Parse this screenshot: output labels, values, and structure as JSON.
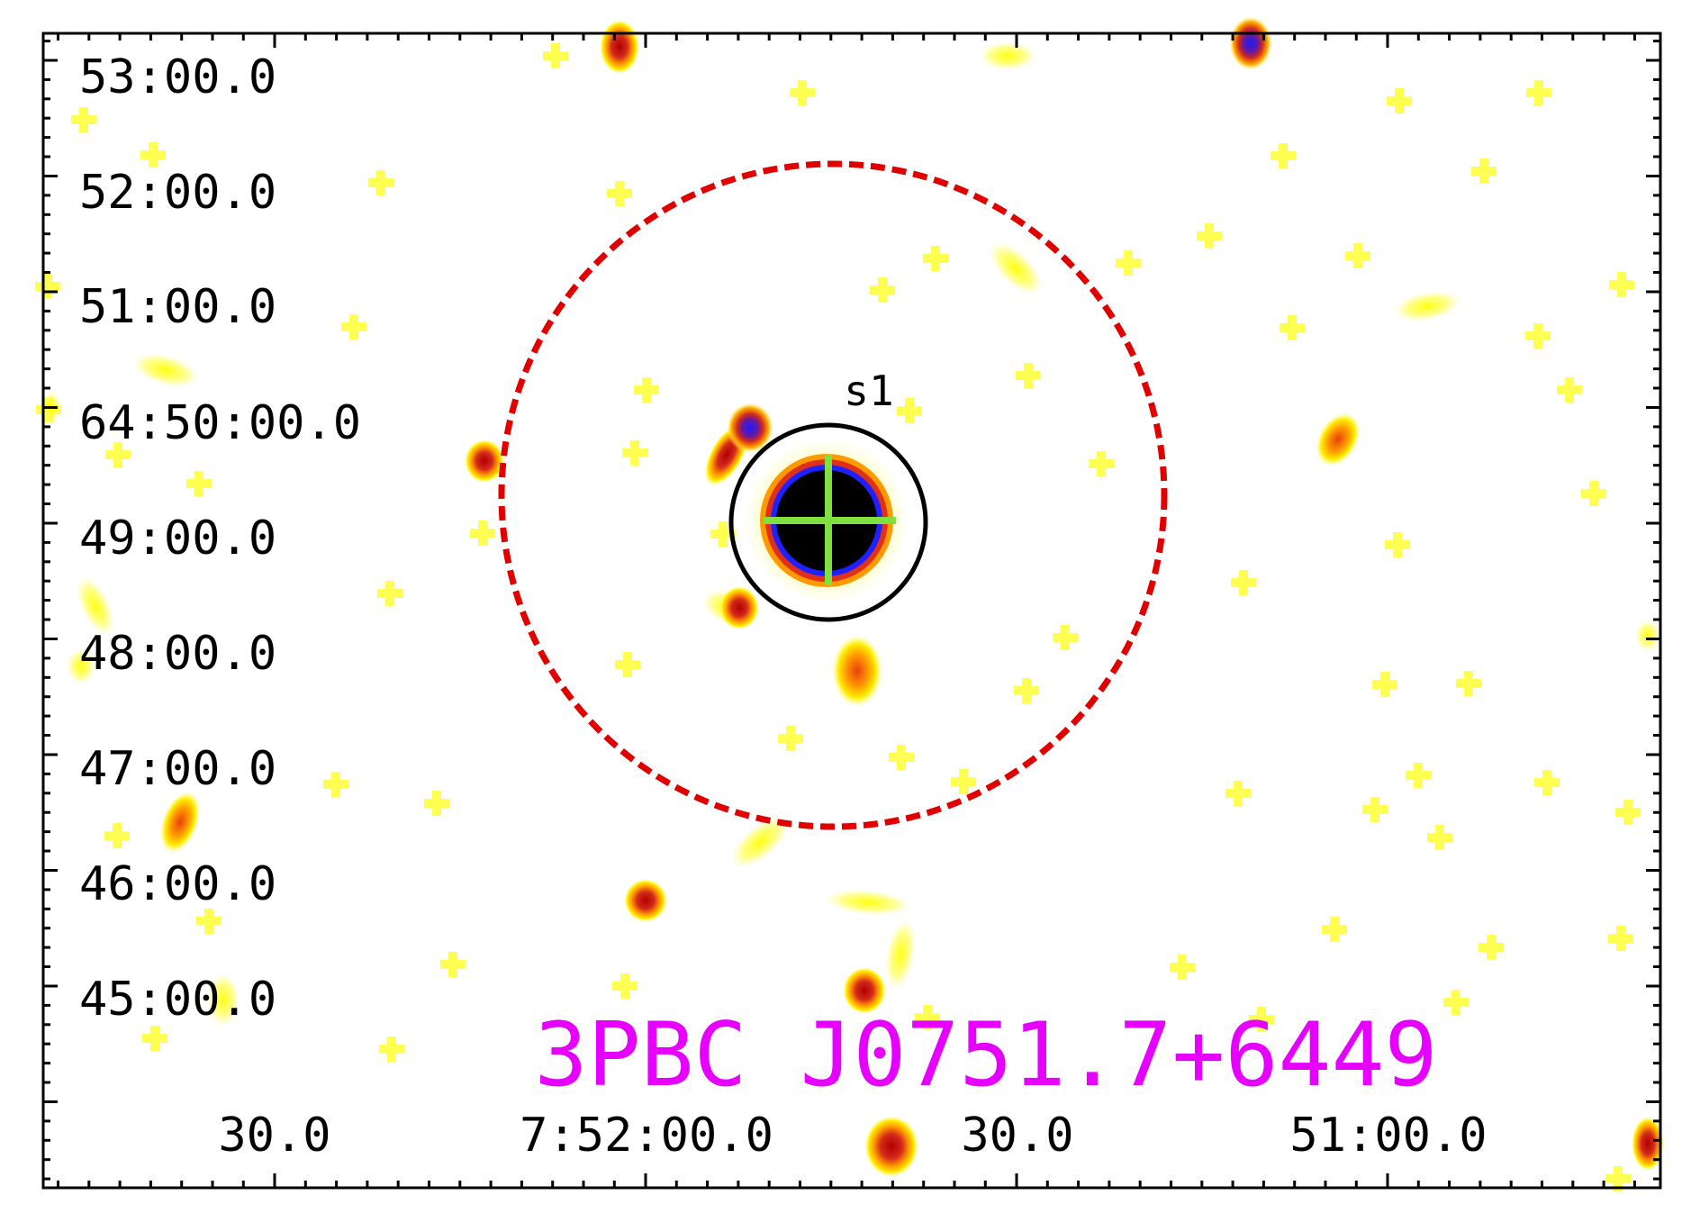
{
  "y_axis": {
    "tick_labels": [
      "53:00.0",
      "52:00.0",
      "51:00.0",
      "64:50:00.0",
      "49:00.0",
      "48:00.0",
      "47:00.0",
      "46:00.0",
      "45:00.0"
    ]
  },
  "x_axis": {
    "tick_labels": [
      "30.0",
      "7:52:00.0",
      "30.0",
      "51:00.0"
    ]
  },
  "source": {
    "label": "s1"
  },
  "title": "3PBC J0751.7+6449",
  "colors": {
    "frame": "#000000",
    "tick_text": "#000000",
    "title": "#e600ff",
    "region_dashed": "#e00000",
    "source_circle": "#000000",
    "crosshair": "#80e040",
    "photon_faint": "#ffff33",
    "photon_mid": "#ff9900",
    "photon_bright": "#d42a1a",
    "photon_peak": "#1a1aff",
    "photon_core": "#000000"
  }
}
